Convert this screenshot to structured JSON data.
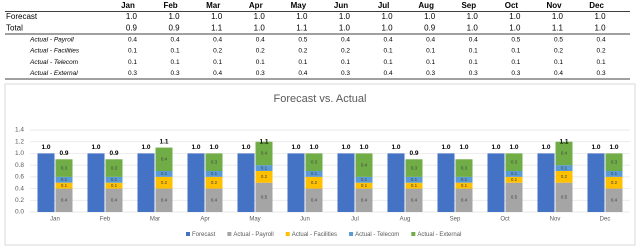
{
  "table": {
    "header": [
      "Jan",
      "Feb",
      "Mar",
      "Apr",
      "May",
      "Jun",
      "Jul",
      "Aug",
      "Sep",
      "Oct",
      "Nov",
      "Dec"
    ],
    "rows": [
      {
        "label": "Forecast",
        "values": [
          "1.0",
          "1.0",
          "1.0",
          "1.0",
          "1.0",
          "1.0",
          "1.0",
          "1.0",
          "1.0",
          "1.0",
          "1.0",
          "1.0"
        ]
      },
      {
        "label": "Total",
        "values": [
          "0.9",
          "0.9",
          "1.1",
          "1.0",
          "1.1",
          "1.0",
          "1.0",
          "0.9",
          "1.0",
          "1.0",
          "1.1",
          "1.0"
        ]
      },
      {
        "label": "Actual - Payroll",
        "values": [
          "0.4",
          "0.4",
          "0.4",
          "0.4",
          "0.5",
          "0.4",
          "0.4",
          "0.4",
          "0.4",
          "0.5",
          "0.5",
          "0.4"
        ]
      },
      {
        "label": "Actual - Facilities",
        "values": [
          "0.1",
          "0.1",
          "0.2",
          "0.2",
          "0.2",
          "0.2",
          "0.1",
          "0.1",
          "0.1",
          "0.1",
          "0.2",
          "0.2"
        ]
      },
      {
        "label": "Actual - Telecom",
        "values": [
          "0.1",
          "0.1",
          "0.1",
          "0.1",
          "0.1",
          "0.1",
          "0.1",
          "0.1",
          "0.1",
          "0.1",
          "0.1",
          "0.1"
        ]
      },
      {
        "label": "Actual - External",
        "values": [
          "0.3",
          "0.3",
          "0.4",
          "0.3",
          "0.4",
          "0.3",
          "0.4",
          "0.3",
          "0.3",
          "0.3",
          "0.4",
          "0.3"
        ]
      }
    ]
  },
  "chart_data": {
    "type": "bar",
    "title": "Forecast vs. Actual",
    "categories": [
      "Jan",
      "Feb",
      "Mar",
      "Apr",
      "May",
      "Jun",
      "Jul",
      "Aug",
      "Sep",
      "Oct",
      "Nov",
      "Dec"
    ],
    "ylim": [
      0,
      1.4
    ],
    "yticks": [
      {
        "value": 0,
        "label": "0.0"
      },
      0.2,
      0.4,
      0.6,
      0.8,
      {
        "value": 1,
        "label": "1.0"
      },
      1.2,
      1.4
    ],
    "grid": true,
    "series": [
      {
        "name": "Forecast",
        "color": "#4472c4",
        "stack": "forecast",
        "values": [
          1,
          1,
          1,
          1,
          1,
          1,
          1,
          1,
          1,
          1,
          1,
          1
        ],
        "value_labels": [
          "1.0",
          "1.0",
          "1.0",
          "1.0",
          "1.0",
          "1.0",
          "1.0",
          "1.0",
          "1.0",
          "1.0",
          "1.0",
          "1.0"
        ]
      },
      {
        "name": "Actual - Payroll",
        "color": "#a5a5a5",
        "stack": "actual",
        "values": [
          0.4,
          0.4,
          0.4,
          0.4,
          0.5,
          0.4,
          0.4,
          0.4,
          0.4,
          0.5,
          0.5,
          0.4
        ]
      },
      {
        "name": "Actual - Facilities",
        "color": "#ffc000",
        "stack": "actual",
        "values": [
          0.1,
          0.1,
          0.2,
          0.2,
          0.2,
          0.2,
          0.1,
          0.1,
          0.1,
          0.1,
          0.2,
          0.2
        ]
      },
      {
        "name": "Actual - Telecom",
        "color": "#5b9bd5",
        "stack": "actual",
        "values": [
          0.1,
          0.1,
          0.1,
          0.1,
          0.1,
          0.1,
          0.1,
          0.1,
          0.1,
          0.1,
          0.1,
          0.1
        ]
      },
      {
        "name": "Actual - External",
        "color": "#70ad47",
        "stack": "actual",
        "values": [
          0.3,
          0.3,
          0.4,
          0.3,
          0.4,
          0.3,
          0.4,
          0.3,
          0.3,
          0.3,
          0.4,
          0.3
        ]
      }
    ],
    "totals": [
      0.9,
      0.9,
      1.1,
      1,
      1.1,
      1,
      1,
      0.9,
      1,
      1,
      1.1,
      1
    ],
    "total_labels": [
      "0.9",
      "0.9",
      "1.1",
      "1.0",
      "1.1",
      "1.0",
      "1.0",
      "0.9",
      "1.0",
      "1.0",
      "1.1",
      "1.0"
    ]
  }
}
